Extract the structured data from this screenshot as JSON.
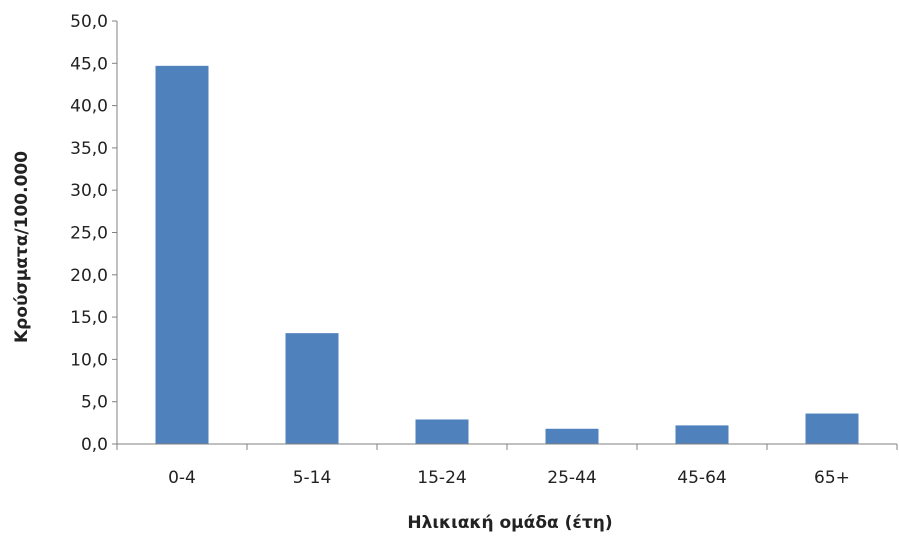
{
  "chart_data": {
    "type": "bar",
    "title": "",
    "xlabel": "Ηλικιακή ομάδα (έτη)",
    "ylabel": "Κρούσματα/100.000",
    "categories": [
      "0-4",
      "5-14",
      "15-24",
      "25-44",
      "45-64",
      "65+"
    ],
    "values": [
      44.7,
      13.1,
      2.9,
      1.8,
      2.2,
      3.6
    ],
    "ylim": [
      0,
      50
    ],
    "yticks": [
      0,
      5,
      10,
      15,
      20,
      25,
      30,
      35,
      40,
      45,
      50
    ],
    "ytick_labels": [
      "0,0",
      "5,0",
      "10,0",
      "15,0",
      "20,0",
      "25,0",
      "30,0",
      "35,0",
      "40,0",
      "45,0",
      "50,0"
    ],
    "grid": false,
    "legend": "none",
    "colors": {
      "bar": "#4F81BD",
      "axis": "#808080"
    }
  }
}
